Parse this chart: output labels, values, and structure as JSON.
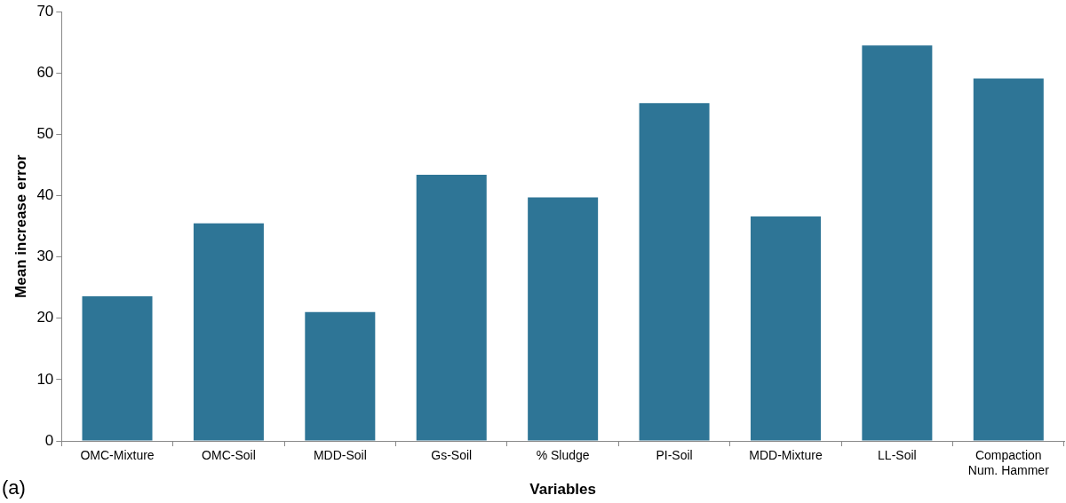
{
  "chart_data": {
    "type": "bar",
    "xlabel": "Variables",
    "ylabel": "Mean increase error",
    "categories": [
      "OMC-Mixture",
      "OMC-Soil",
      "MDD-Soil",
      "Gs-Soil",
      "% Sludge",
      "PI-Soil",
      "MDD-Mixture",
      "LL-Soil",
      "Compaction Num. Hammer"
    ],
    "values": [
      23.6,
      35.5,
      21.0,
      43.4,
      39.7,
      55.1,
      36.6,
      64.5,
      59.1
    ],
    "color": "#2e7596",
    "ylim": [
      0,
      70
    ],
    "yticks": [
      0,
      10,
      20,
      30,
      40,
      50,
      60,
      70
    ],
    "grid": false,
    "legend": false,
    "annotations": [
      "(a)"
    ]
  }
}
